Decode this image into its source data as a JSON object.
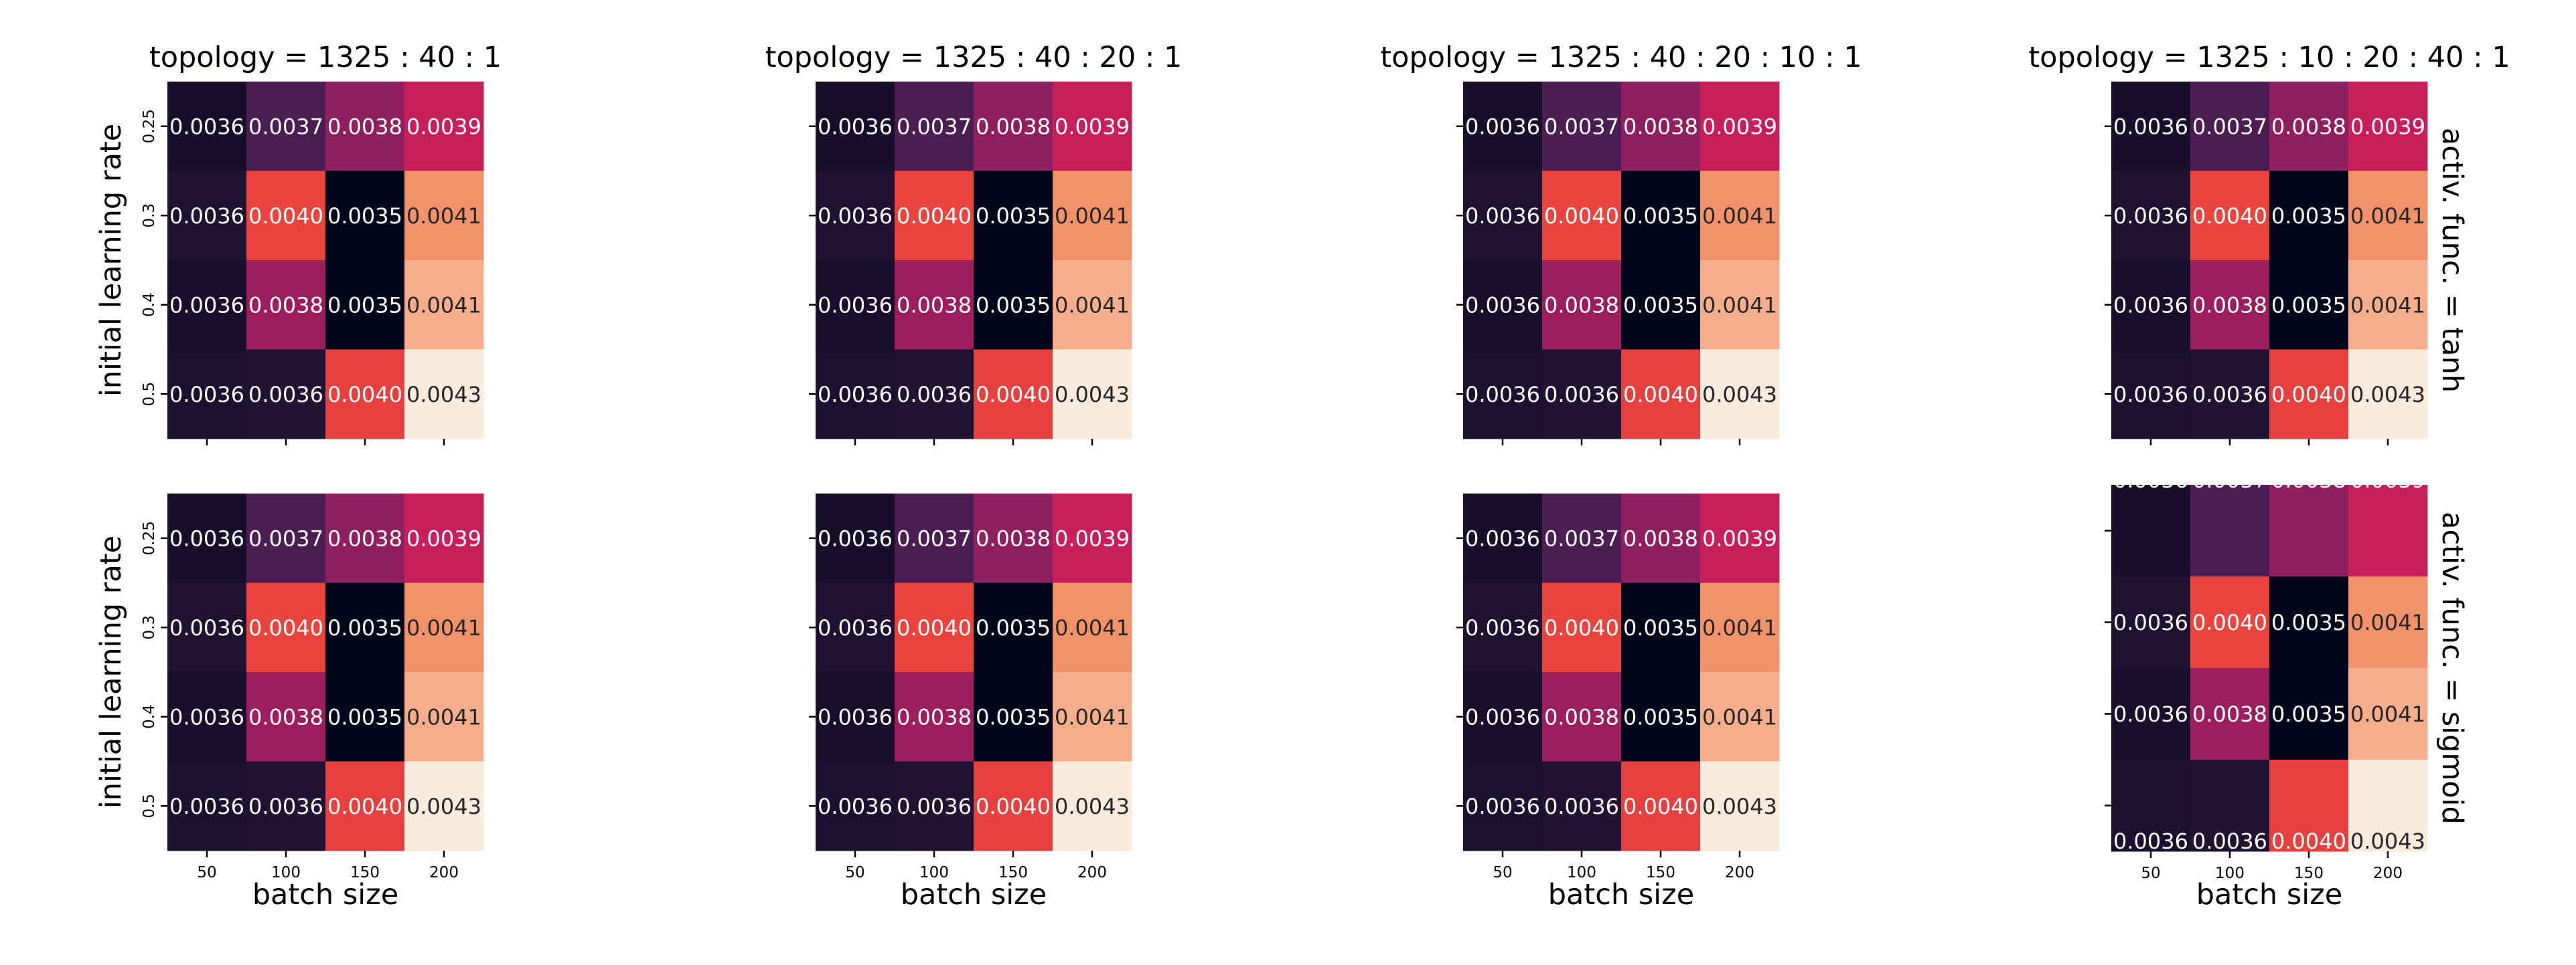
{
  "chart_data": {
    "type": "heatmap",
    "shared": {
      "xlabel": "batch size",
      "ylabel": "initial learning rate",
      "x_ticks": [
        "50",
        "100",
        "150",
        "200"
      ],
      "y_ticks": [
        "0.25",
        "0.3",
        "0.4",
        "0.5"
      ],
      "values": [
        [
          0.0036,
          0.0037,
          0.0038,
          0.0039
        ],
        [
          0.0036,
          0.004,
          0.0035,
          0.0041
        ],
        [
          0.0036,
          0.0038,
          0.0035,
          0.0041
        ],
        [
          0.0036,
          0.0036,
          0.004,
          0.0043
        ]
      ],
      "labels": [
        [
          "0.0036",
          "0.0037",
          "0.0038",
          "0.0039"
        ],
        [
          "0.0036",
          "0.0040",
          "0.0035",
          "0.0041"
        ],
        [
          "0.0036",
          "0.0038",
          "0.0035",
          "0.0041"
        ],
        [
          "0.0036",
          "0.0036",
          "0.0040",
          "0.0043"
        ]
      ],
      "cell_colors": [
        [
          "#170e29",
          "#4b1d52",
          "#8f1f5f",
          "#c81e5a"
        ],
        [
          "#1e1131",
          "#e9453e",
          "#03051a",
          "#f1926a"
        ],
        [
          "#190f2d",
          "#9c1e5f",
          "#03051a",
          "#f5ad8c"
        ],
        [
          "#1c1030",
          "#231333",
          "#e6403f",
          "#faebdd"
        ]
      ],
      "light_text_color": "#ffffff",
      "dark_text_color": "#262626"
    },
    "col_titles": [
      "topology = 1325 : 40 : 1",
      "topology = 1325 : 40 : 20 : 1",
      "topology = 1325 : 40 : 20 : 10 : 1",
      "topology = 1325 : 10 : 20 : 40 : 1"
    ],
    "row_titles": [
      "activ. func. = tanh",
      "activ. func. = sigmoid"
    ]
  }
}
